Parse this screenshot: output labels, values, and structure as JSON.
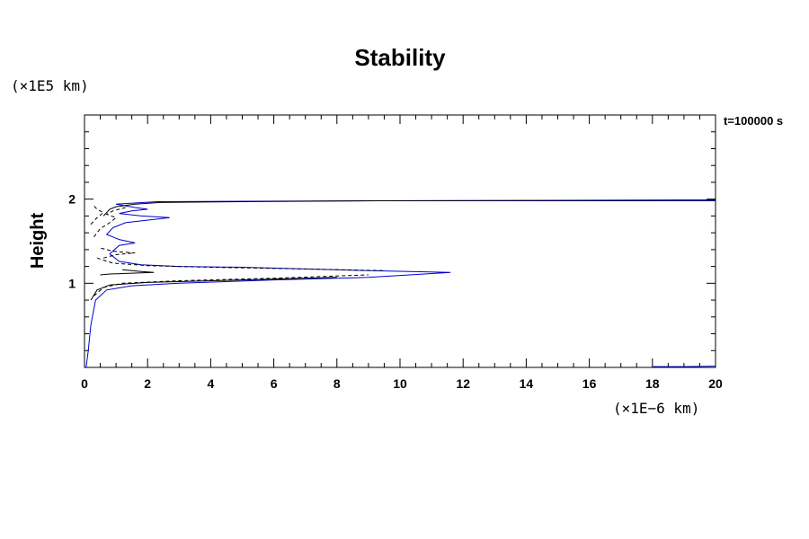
{
  "chart_data": {
    "type": "line",
    "title": "Stability",
    "ylabel": "Height",
    "xlabel": "",
    "y_unit": "(×1E5 km)",
    "x_unit": "(×1E−6 km)",
    "time_label": "t=100000 s",
    "xlim": [
      0,
      20
    ],
    "ylim": [
      0,
      3
    ],
    "x_ticks": [
      0,
      2,
      4,
      6,
      8,
      10,
      12,
      14,
      16,
      18,
      20
    ],
    "y_ticks": [
      1,
      2
    ],
    "colors": {
      "axis": "#000000",
      "blue": "#0000cc",
      "black": "#000000"
    },
    "series": [
      {
        "style": "solid",
        "color": "#0000cc",
        "points": [
          [
            0.05,
            0
          ],
          [
            0.12,
            0.2
          ],
          [
            0.2,
            0.5
          ],
          [
            0.35,
            0.8
          ],
          [
            0.7,
            0.92
          ],
          [
            1.5,
            0.97
          ],
          [
            3,
            1.0
          ],
          [
            6,
            1.04
          ],
          [
            9,
            1.07
          ],
          [
            11.6,
            1.13
          ],
          [
            9,
            1.15
          ],
          [
            7,
            1.17
          ],
          [
            5,
            1.19
          ],
          [
            3,
            1.2
          ],
          [
            1.8,
            1.22
          ],
          [
            1.1,
            1.26
          ],
          [
            0.8,
            1.35
          ],
          [
            1.1,
            1.45
          ],
          [
            1.6,
            1.48
          ],
          [
            1.1,
            1.52
          ],
          [
            0.7,
            1.58
          ],
          [
            0.9,
            1.66
          ],
          [
            1.3,
            1.72
          ],
          [
            2.7,
            1.78
          ],
          [
            1.8,
            1.8
          ],
          [
            1.1,
            1.83
          ],
          [
            1.5,
            1.86
          ],
          [
            2,
            1.88
          ],
          [
            1.6,
            1.9
          ],
          [
            1.0,
            1.94
          ],
          [
            2.3,
            1.97
          ],
          [
            9.3,
            1.98
          ],
          [
            20,
            1.98
          ]
        ]
      },
      {
        "style": "solid",
        "color": "#000000",
        "points": [
          [
            1.2,
            1.16
          ],
          [
            1.8,
            1.14
          ],
          [
            2.2,
            1.13
          ],
          [
            1.5,
            1.12
          ],
          [
            0.8,
            1.11
          ],
          [
            0.5,
            1.1
          ]
        ]
      },
      {
        "style": "solid",
        "color": "#000000",
        "points": [
          [
            0.6,
            1.8
          ],
          [
            0.8,
            1.88
          ],
          [
            1.0,
            1.91
          ],
          [
            1.6,
            1.94
          ],
          [
            2.4,
            1.96
          ],
          [
            5,
            1.97
          ],
          [
            9.2,
            1.98
          ],
          [
            20,
            1.99
          ]
        ]
      },
      {
        "style": "solid",
        "color": "#000000",
        "points": [
          [
            0.2,
            0.8
          ],
          [
            0.4,
            0.92
          ],
          [
            0.8,
            0.98
          ],
          [
            2,
            1.01
          ],
          [
            5,
            1.04
          ],
          [
            8,
            1.07
          ]
        ]
      },
      {
        "style": "dashed",
        "color": "#000000",
        "points": [
          [
            0.3,
            0.85
          ],
          [
            0.6,
            0.95
          ],
          [
            1.2,
            1.0
          ],
          [
            3,
            1.03
          ],
          [
            6,
            1.06
          ],
          [
            9,
            1.1
          ]
        ]
      },
      {
        "style": "dashed",
        "color": "#000000",
        "points": [
          [
            0.4,
            1.3
          ],
          [
            0.9,
            1.24
          ],
          [
            2,
            1.21
          ],
          [
            4,
            1.19
          ],
          [
            7,
            1.17
          ],
          [
            9.5,
            1.15
          ]
        ]
      },
      {
        "style": "dashed",
        "color": "#000000",
        "points": [
          [
            0.3,
            1.55
          ],
          [
            0.5,
            1.65
          ],
          [
            0.8,
            1.72
          ],
          [
            1.0,
            1.78
          ],
          [
            0.7,
            1.82
          ],
          [
            0.9,
            1.86
          ],
          [
            1.3,
            1.9
          ]
        ]
      },
      {
        "style": "dashed",
        "color": "#000000",
        "points": [
          [
            0.2,
            1.7
          ],
          [
            0.4,
            1.78
          ],
          [
            0.6,
            1.84
          ],
          [
            0.4,
            1.88
          ],
          [
            0.3,
            1.92
          ]
        ]
      },
      {
        "style": "dashed",
        "color": "#000000",
        "points": [
          [
            0.6,
            1.3
          ],
          [
            1.0,
            1.34
          ],
          [
            1.6,
            1.36
          ],
          [
            0.9,
            1.38
          ],
          [
            0.5,
            1.42
          ]
        ]
      },
      {
        "style": "solid",
        "color": "#0000cc",
        "points": [
          [
            18.0,
            0.01
          ],
          [
            19.0,
            0.01
          ],
          [
            20,
            0.015
          ]
        ]
      }
    ]
  }
}
